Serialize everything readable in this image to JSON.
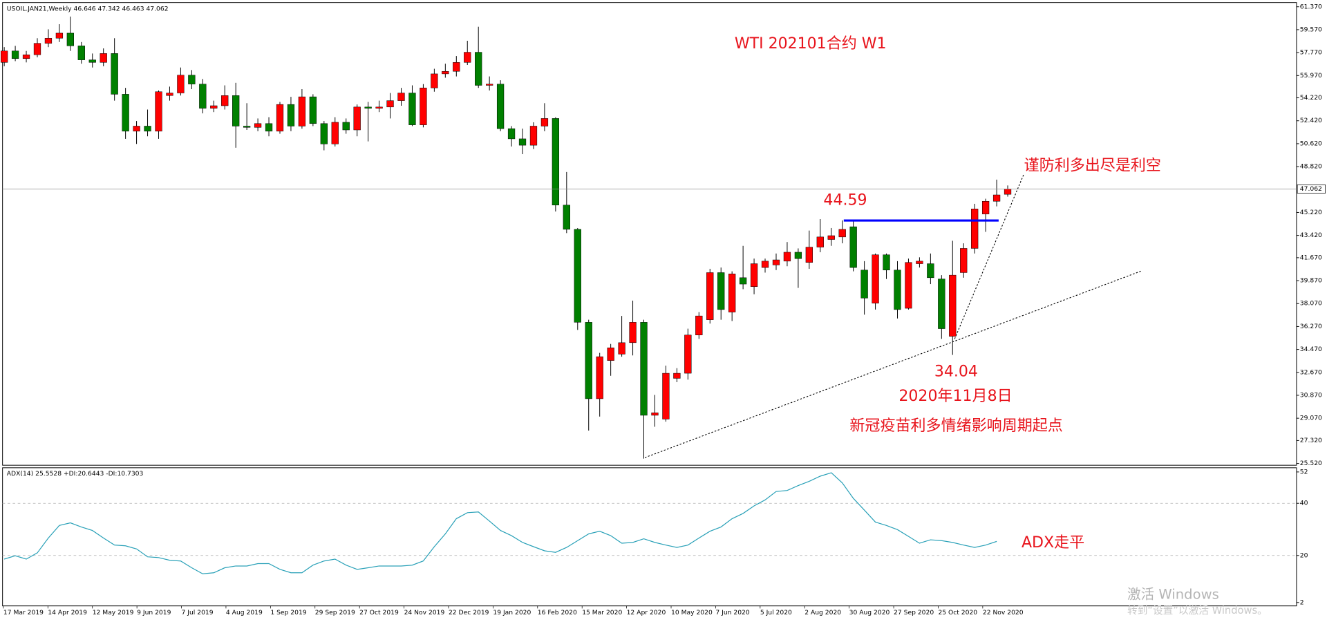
{
  "chart_data": {
    "type": "candlestick",
    "symbol": "USOIL.JAN21,Weekly",
    "up_color": "#ff0000",
    "down_color": "#008000",
    "ylim": [
      25.38,
      61.7
    ],
    "yticks": [
      {
        "value": 61.37,
        "label": "61.370"
      },
      {
        "value": 59.57,
        "label": "59.570"
      },
      {
        "value": 57.77,
        "label": "57.770"
      },
      {
        "value": 55.97,
        "label": "55.970"
      },
      {
        "value": 54.22,
        "label": "54.220"
      },
      {
        "value": 52.42,
        "label": "52.420"
      },
      {
        "value": 50.62,
        "label": "50.620"
      },
      {
        "value": 48.82,
        "label": "48.820"
      },
      {
        "value": 45.22,
        "label": "45.220"
      },
      {
        "value": 43.42,
        "label": "43.420"
      },
      {
        "value": 41.67,
        "label": "41.670"
      },
      {
        "value": 39.87,
        "label": "39.870"
      },
      {
        "value": 38.07,
        "label": "38.070"
      },
      {
        "value": 36.27,
        "label": "36.270"
      },
      {
        "value": 34.47,
        "label": "34.470"
      },
      {
        "value": 32.67,
        "label": "32.670"
      },
      {
        "value": 30.87,
        "label": "30.870"
      },
      {
        "value": 29.07,
        "label": "29.070"
      },
      {
        "value": 27.32,
        "label": "27.320"
      },
      {
        "value": 25.52,
        "label": "25.520"
      }
    ],
    "xlabels": [
      "17 Mar 2019",
      "14 Apr 2019",
      "12 May 2019",
      "9 Jun 2019",
      "7 Jul 2019",
      "4 Aug 2019",
      "1 Sep 2019",
      "29 Sep 2019",
      "27 Oct 2019",
      "24 Nov 2019",
      "22 Dec 2019",
      "19 Jan 2020",
      "16 Feb 2020",
      "15 Mar 2020",
      "12 Apr 2020",
      "10 May 2020",
      "7 Jun 2020",
      "5 Jul 2020",
      "2 Aug 2020",
      "30 Aug 2020",
      "27 Sep 2020",
      "25 Oct 2020",
      "22 Nov 2020"
    ],
    "candles": [
      [
        57.0,
        58.2,
        56.7,
        57.9
      ],
      [
        57.9,
        58.3,
        57.1,
        57.3
      ],
      [
        57.3,
        57.9,
        57.0,
        57.6
      ],
      [
        57.6,
        58.9,
        57.4,
        58.5
      ],
      [
        58.5,
        59.6,
        58.2,
        58.9
      ],
      [
        58.9,
        60.0,
        58.6,
        59.3
      ],
      [
        59.3,
        60.6,
        57.9,
        58.3
      ],
      [
        58.3,
        58.6,
        56.9,
        57.2
      ],
      [
        57.2,
        57.7,
        56.6,
        57.0
      ],
      [
        57.0,
        58.1,
        56.7,
        57.7
      ],
      [
        57.7,
        58.9,
        54.0,
        54.5
      ],
      [
        54.5,
        55.0,
        51.0,
        51.6
      ],
      [
        51.6,
        52.4,
        50.6,
        52.0
      ],
      [
        52.0,
        53.3,
        51.2,
        51.6
      ],
      [
        51.6,
        54.8,
        51.0,
        54.7
      ],
      [
        54.4,
        55.1,
        54.0,
        54.6
      ],
      [
        54.6,
        56.6,
        54.4,
        56.0
      ],
      [
        56.0,
        56.4,
        54.9,
        55.3
      ],
      [
        55.3,
        55.7,
        53.0,
        53.4
      ],
      [
        53.4,
        54.0,
        53.1,
        53.6
      ],
      [
        53.6,
        55.2,
        53.3,
        54.4
      ],
      [
        54.4,
        55.4,
        50.3,
        52.0
      ],
      [
        52.0,
        53.8,
        51.7,
        51.9
      ],
      [
        51.9,
        52.6,
        51.6,
        52.2
      ],
      [
        52.2,
        52.7,
        51.2,
        51.6
      ],
      [
        51.6,
        53.9,
        51.4,
        53.7
      ],
      [
        53.7,
        54.3,
        51.6,
        52.0
      ],
      [
        52.0,
        54.9,
        51.8,
        54.3
      ],
      [
        54.3,
        54.5,
        52.0,
        52.2
      ],
      [
        52.2,
        52.4,
        50.1,
        50.6
      ],
      [
        50.6,
        52.7,
        50.4,
        52.3
      ],
      [
        52.3,
        52.6,
        51.4,
        51.7
      ],
      [
        51.7,
        53.7,
        51.2,
        53.5
      ],
      [
        53.5,
        53.9,
        50.8,
        53.4
      ],
      [
        53.4,
        54.0,
        53.1,
        53.5
      ],
      [
        53.5,
        54.6,
        52.6,
        54.0
      ],
      [
        54.0,
        55.0,
        53.6,
        54.6
      ],
      [
        54.6,
        55.2,
        52.0,
        52.1
      ],
      [
        52.1,
        55.3,
        51.9,
        55.0
      ],
      [
        55.0,
        56.5,
        54.7,
        56.1
      ],
      [
        56.1,
        56.9,
        55.8,
        56.3
      ],
      [
        56.3,
        57.5,
        55.9,
        57.0
      ],
      [
        57.0,
        58.7,
        56.8,
        57.8
      ],
      [
        57.8,
        59.8,
        55.0,
        55.2
      ],
      [
        55.2,
        55.9,
        54.8,
        55.3
      ],
      [
        55.3,
        55.6,
        51.6,
        51.8
      ],
      [
        51.8,
        52.0,
        50.4,
        51.0
      ],
      [
        51.0,
        51.8,
        49.8,
        50.5
      ],
      [
        50.5,
        52.3,
        50.2,
        52.0
      ],
      [
        52.0,
        53.8,
        51.6,
        52.6
      ],
      [
        52.6,
        52.7,
        45.3,
        45.8
      ],
      [
        45.8,
        48.4,
        43.6,
        43.9
      ],
      [
        43.9,
        44.0,
        36.0,
        36.6
      ],
      [
        36.6,
        36.8,
        28.1,
        30.6
      ],
      [
        30.6,
        34.2,
        29.2,
        33.9
      ],
      [
        33.6,
        34.9,
        32.4,
        34.6
      ],
      [
        34.1,
        37.1,
        33.9,
        35.0
      ],
      [
        35.0,
        38.3,
        34.0,
        36.6
      ],
      [
        36.6,
        36.8,
        25.9,
        29.3
      ],
      [
        29.3,
        30.9,
        28.4,
        29.5
      ],
      [
        29.0,
        33.2,
        28.8,
        32.6
      ],
      [
        32.2,
        33.0,
        31.9,
        32.6
      ],
      [
        32.6,
        36.1,
        32.1,
        35.6
      ],
      [
        35.6,
        37.4,
        35.3,
        37.1
      ],
      [
        36.8,
        40.8,
        36.5,
        40.5
      ],
      [
        40.5,
        40.9,
        36.8,
        37.6
      ],
      [
        37.4,
        40.6,
        36.7,
        40.4
      ],
      [
        40.1,
        42.6,
        39.2,
        39.6
      ],
      [
        39.4,
        41.6,
        38.8,
        41.2
      ],
      [
        40.9,
        41.6,
        40.5,
        41.4
      ],
      [
        41.1,
        42.0,
        40.7,
        41.5
      ],
      [
        41.4,
        42.9,
        41.0,
        42.1
      ],
      [
        42.1,
        42.4,
        39.3,
        41.6
      ],
      [
        41.3,
        43.8,
        40.8,
        42.5
      ],
      [
        42.5,
        44.7,
        42.1,
        43.3
      ],
      [
        43.1,
        44.0,
        42.6,
        43.4
      ],
      [
        43.3,
        44.6,
        42.8,
        43.9
      ],
      [
        44.1,
        44.6,
        40.6,
        40.9
      ],
      [
        40.7,
        41.4,
        37.2,
        38.5
      ],
      [
        38.1,
        42.0,
        37.6,
        41.9
      ],
      [
        41.9,
        42.0,
        40.0,
        40.7
      ],
      [
        40.7,
        41.4,
        36.9,
        37.6
      ],
      [
        37.7,
        41.6,
        37.6,
        41.3
      ],
      [
        41.2,
        41.7,
        40.9,
        41.4
      ],
      [
        41.2,
        42.0,
        39.6,
        40.1
      ],
      [
        40.0,
        40.3,
        35.3,
        36.1
      ],
      [
        35.5,
        43.0,
        34.04,
        40.3
      ],
      [
        40.5,
        42.8,
        40.1,
        42.4
      ],
      [
        42.4,
        45.9,
        42.0,
        45.5
      ],
      [
        45.1,
        46.3,
        43.7,
        46.1
      ],
      [
        46.1,
        47.8,
        45.7,
        46.6
      ],
      [
        46.646,
        47.342,
        46.463,
        47.062
      ]
    ],
    "annotations": {
      "title": "WTI 202101合约 W1",
      "warning": "谨防利多出尽是利空",
      "resistance": 44.59,
      "resistance_color": "#0000ff",
      "low": 34.04,
      "low_date": "2020年11月8日",
      "low_note": "新冠疫苗利多情绪影响周期起点",
      "adx_note": "ADX走平"
    },
    "adx": {
      "header": "ADX(14) 25.5528 +DI:20.6443 -DI:10.7303",
      "color": "#2aa1b8",
      "ylim": [
        0.7,
        53.6
      ],
      "yticks": [
        52,
        40,
        20,
        2
      ],
      "grid": [
        40,
        20
      ],
      "values": [
        18.6,
        19.9,
        18.6,
        21,
        26.7,
        31.5,
        32.5,
        30.9,
        29.6,
        26.7,
        24,
        23.7,
        22.5,
        19.5,
        19.2,
        18.2,
        17.9,
        15.3,
        13,
        13.4,
        15.3,
        16,
        16,
        16.9,
        16.9,
        14.7,
        13.4,
        13.4,
        16.3,
        17.9,
        18.6,
        16.3,
        14.7,
        15.3,
        16,
        16,
        16,
        16.3,
        17.9,
        23.4,
        28.3,
        34.1,
        36.4,
        36.7,
        33.2,
        29.6,
        27.6,
        25,
        23.4,
        21.8,
        21.2,
        23.1,
        25.7,
        28.3,
        29.3,
        27.6,
        24.7,
        25,
        26.4,
        25,
        24,
        23.1,
        24,
        26.7,
        29.3,
        30.9,
        34.1,
        36.1,
        39,
        41.3,
        44.5,
        44.9,
        46.8,
        48.4,
        50.4,
        51.7,
        47.8,
        41.9,
        37.4,
        32.8,
        31.5,
        29.9,
        27.3,
        24.7,
        26,
        25.7,
        25,
        24,
        23.1,
        24,
        25.4
      ]
    },
    "watermark": {
      "line1": "激活 Windows",
      "line2": "转到“设置”以激活 Windows。"
    }
  }
}
